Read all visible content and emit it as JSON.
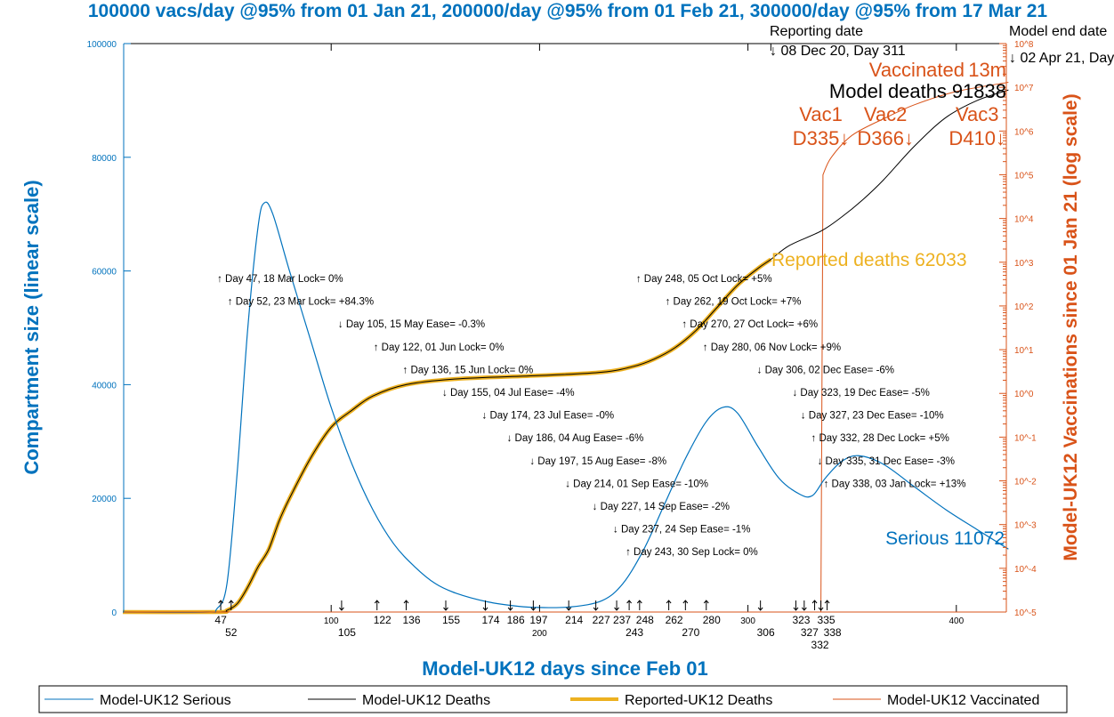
{
  "chart_data": {
    "type": "line",
    "title": "100000 vacs/day @95% from 01 Jan 21, 200000/day @95% from 01 Feb 21, 300000/day @95% from 17 Mar 21",
    "xlabel": "Model-UK12 days since Feb 01",
    "ylabel": "Compartment size (linear scale)",
    "y2label": "Model-UK12 Vaccinations since 01 Jan 21 (log scale)",
    "xlim": [
      0,
      425
    ],
    "ylim": [
      0,
      100000
    ],
    "y2lim": [
      1e-05,
      100000000.0
    ],
    "y2scale": "log",
    "xticks": [
      100,
      200,
      300,
      400
    ],
    "yticks": [
      0,
      20000,
      40000,
      60000,
      80000,
      100000
    ],
    "y2ticks": [
      "10^-5",
      "10^-4",
      "10^-3",
      "10^-2",
      "10^-1",
      "10^0",
      "10^1",
      "10^2",
      "10^3",
      "10^4",
      "10^5",
      "10^6",
      "10^7",
      "10^8"
    ],
    "grid": false,
    "legend_placement": "bottom-outside",
    "colors": {
      "serious": "#0072BD",
      "deaths": "#000000",
      "reported": "#EDB120",
      "vaccinated": "#D95319",
      "title": "#0072BD"
    },
    "series": [
      {
        "name": "Model-UK12 Serious",
        "axis": "left",
        "x": [
          0,
          40,
          45,
          50,
          55,
          60,
          65,
          68,
          72,
          80,
          90,
          100,
          110,
          120,
          130,
          140,
          150,
          160,
          175,
          190,
          200,
          215,
          230,
          240,
          250,
          260,
          270,
          280,
          288,
          295,
          305,
          315,
          325,
          331,
          337,
          345,
          353,
          365,
          380,
          395,
          410,
          425
        ],
        "y": [
          0,
          0,
          500,
          5000,
          25000,
          50000,
          68000,
          72000,
          70000,
          60000,
          48000,
          36000,
          26000,
          18000,
          12000,
          8000,
          5000,
          3300,
          1800,
          1000,
          800,
          900,
          2000,
          5000,
          11000,
          19000,
          27000,
          33500,
          36000,
          35000,
          29000,
          23500,
          20700,
          20500,
          23500,
          26500,
          27500,
          26000,
          22000,
          18000,
          14500,
          11072
        ]
      },
      {
        "name": "Model-UK12 Deaths",
        "axis": "left",
        "x": [
          0,
          45,
          50,
          55,
          60,
          65,
          70,
          75,
          80,
          90,
          100,
          110,
          120,
          136,
          160,
          200,
          230,
          245,
          255,
          265,
          275,
          285,
          295,
          305,
          311,
          320,
          335,
          345,
          355,
          365,
          380,
          395,
          410,
          425
        ],
        "y": [
          0,
          0,
          300,
          1500,
          4400,
          8000,
          11000,
          16000,
          20000,
          27000,
          32500,
          35500,
          38000,
          40000,
          41000,
          41600,
          42200,
          43200,
          44500,
          46500,
          49500,
          53500,
          57500,
          60500,
          62033,
          64500,
          67000,
          69500,
          72500,
          76000,
          82000,
          87000,
          90000,
          91838
        ]
      },
      {
        "name": "Reported-UK12 Deaths",
        "axis": "left",
        "x": [
          0,
          45,
          50,
          55,
          60,
          65,
          70,
          75,
          80,
          90,
          100,
          110,
          120,
          136,
          160,
          200,
          230,
          245,
          255,
          265,
          275,
          285,
          295,
          305,
          311
        ],
        "y": [
          0,
          0,
          300,
          1500,
          4400,
          8000,
          11000,
          16000,
          20000,
          27000,
          32500,
          35500,
          38000,
          40000,
          41000,
          41600,
          42200,
          43200,
          44500,
          46500,
          49500,
          53500,
          57500,
          60500,
          62033
        ]
      },
      {
        "name": "Model-UK12 Vaccinated",
        "axis": "right",
        "x": [
          0,
          335,
          336,
          340,
          350,
          366,
          380,
          400,
          425
        ],
        "y": [
          1e-05,
          1e-05,
          100000.0,
          250000.0,
          800000.0,
          2000000.0,
          4000000.0,
          8000000.0,
          13000000.0
        ]
      }
    ],
    "annotations": [
      {
        "day": 47,
        "dir": "up",
        "text": "Day 47, 18 Mar Lock= 0%"
      },
      {
        "day": 52,
        "dir": "up",
        "text": "Day 52, 23 Mar Lock= +84.3%"
      },
      {
        "day": 105,
        "dir": "down",
        "text": "Day 105, 15 May Ease= -0.3%"
      },
      {
        "day": 122,
        "dir": "up",
        "text": "Day 122, 01 Jun Lock= 0%"
      },
      {
        "day": 136,
        "dir": "up",
        "text": "Day 136, 15 Jun Lock= 0%"
      },
      {
        "day": 155,
        "dir": "down",
        "text": "Day 155, 04 Jul Ease= -4%"
      },
      {
        "day": 174,
        "dir": "down",
        "text": "Day 174, 23 Jul Ease= -0%"
      },
      {
        "day": 186,
        "dir": "down",
        "text": "Day 186, 04 Aug Ease= -6%"
      },
      {
        "day": 197,
        "dir": "down",
        "text": "Day 197, 15 Aug Ease= -8%"
      },
      {
        "day": 214,
        "dir": "down",
        "text": "Day 214, 01 Sep Ease= -10%"
      },
      {
        "day": 227,
        "dir": "down",
        "text": "Day 227, 14 Sep Ease= -2%"
      },
      {
        "day": 237,
        "dir": "down",
        "text": "Day 237, 24 Sep Ease= -1%"
      },
      {
        "day": 243,
        "dir": "up",
        "text": "Day 243, 30 Sep Lock= 0%"
      },
      {
        "day": 248,
        "dir": "up",
        "text": "Day 248, 05 Oct Lock= +5%"
      },
      {
        "day": 262,
        "dir": "up",
        "text": "Day 262, 19 Oct Lock= +7%"
      },
      {
        "day": 270,
        "dir": "up",
        "text": "Day 270, 27 Oct Lock= +6%"
      },
      {
        "day": 280,
        "dir": "up",
        "text": "Day 280, 06 Nov Lock= +9%"
      },
      {
        "day": 306,
        "dir": "down",
        "text": "Day 306, 02 Dec Ease= -6%"
      },
      {
        "day": 323,
        "dir": "down",
        "text": "Day 323, 19 Dec Ease= -5%"
      },
      {
        "day": 327,
        "dir": "down",
        "text": "Day 327, 23 Dec Ease= -10%"
      },
      {
        "day": 332,
        "dir": "up",
        "text": "Day 332, 28 Dec Lock= +5%"
      },
      {
        "day": 335,
        "dir": "down",
        "text": "Day 335, 31 Dec Ease= -3%"
      },
      {
        "day": 338,
        "dir": "up",
        "text": "Day 338, 03 Jan Lock= +13%"
      }
    ],
    "vaccine_markers": [
      {
        "label": "Vac1",
        "sub": "D335↓",
        "day": 335
      },
      {
        "label": "Vac2",
        "sub": "D366↓",
        "day": 366
      },
      {
        "label": "Vac3",
        "sub": "D410↓",
        "day": 410
      }
    ],
    "reporting_date": {
      "label": "Reporting date",
      "text": "↓ 08 Dec 20, Day 311",
      "day": 311
    },
    "model_end_date": {
      "label": "Model end date",
      "text": "↓ 02 Apr 21, Day"
    },
    "end_labels": {
      "serious": "Serious 11072",
      "reported": "Reported deaths 62033",
      "model_deaths_1": "Model deaths",
      "model_deaths_2": "91838",
      "vaccinated_1": "Vaccinated",
      "vaccinated_2": "13m"
    }
  }
}
